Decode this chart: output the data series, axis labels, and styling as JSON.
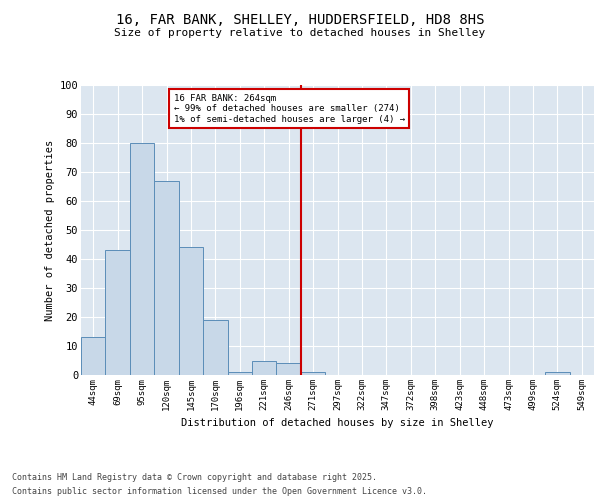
{
  "title": "16, FAR BANK, SHELLEY, HUDDERSFIELD, HD8 8HS",
  "subtitle": "Size of property relative to detached houses in Shelley",
  "xlabel": "Distribution of detached houses by size in Shelley",
  "ylabel": "Number of detached properties",
  "categories": [
    "44sqm",
    "69sqm",
    "95sqm",
    "120sqm",
    "145sqm",
    "170sqm",
    "196sqm",
    "221sqm",
    "246sqm",
    "271sqm",
    "297sqm",
    "322sqm",
    "347sqm",
    "372sqm",
    "398sqm",
    "423sqm",
    "448sqm",
    "473sqm",
    "499sqm",
    "524sqm",
    "549sqm"
  ],
  "values": [
    13,
    43,
    80,
    67,
    44,
    19,
    1,
    5,
    4,
    1,
    0,
    0,
    0,
    0,
    0,
    0,
    0,
    0,
    0,
    1,
    0
  ],
  "bar_color": "#c8d8e8",
  "bar_edge_color": "#5b8db8",
  "vline_color": "#cc0000",
  "vline_pos": 9.5,
  "annotation_title": "16 FAR BANK: 264sqm",
  "annotation_line1": "← 99% of detached houses are smaller (274)",
  "annotation_line2": "1% of semi-detached houses are larger (4) →",
  "annotation_box_color": "#cc0000",
  "ylim": [
    0,
    100
  ],
  "yticks": [
    0,
    10,
    20,
    30,
    40,
    50,
    60,
    70,
    80,
    90,
    100
  ],
  "grid_color": "#ffffff",
  "plot_bg_color": "#dce6f0",
  "footer_line1": "Contains HM Land Registry data © Crown copyright and database right 2025.",
  "footer_line2": "Contains public sector information licensed under the Open Government Licence v3.0."
}
